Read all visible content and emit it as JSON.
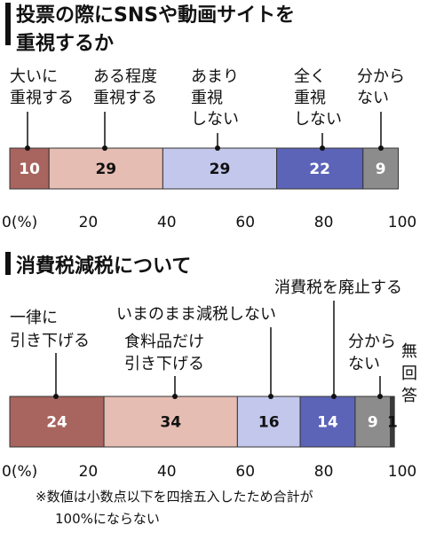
{
  "colors": {
    "c1": "#a8645e",
    "c2": "#e6bdb3",
    "c3": "#c3c7ec",
    "c4": "#5c64b8",
    "c5": "#8c8c8c",
    "c6": "#3a3a3a"
  },
  "footnote": [
    "※数値は小数点以下を四捨五入したため合計が",
    "100%にならない"
  ],
  "chart_data": [
    {
      "type": "bar",
      "orientation": "horizontal-stacked",
      "title": [
        "投票の際にSNSや動画サイトを",
        "重視するか"
      ],
      "xlim": [
        0,
        100
      ],
      "x_ticks": [
        "0(%)",
        "20",
        "40",
        "60",
        "80",
        "100"
      ],
      "series": [
        {
          "name": [
            "大いに",
            "重視する"
          ],
          "value": 10,
          "color": "c1"
        },
        {
          "name": [
            "ある程度",
            "重視する"
          ],
          "value": 29,
          "color": "c2"
        },
        {
          "name": [
            "あまり",
            "重視",
            "しない"
          ],
          "value": 29,
          "color": "c3"
        },
        {
          "name": [
            "全く",
            "重視",
            "しない"
          ],
          "value": 22,
          "color": "c4"
        },
        {
          "name": [
            "分から",
            "ない"
          ],
          "value": 9,
          "color": "c5"
        }
      ]
    },
    {
      "type": "bar",
      "orientation": "horizontal-stacked",
      "title": [
        "消費税減税について"
      ],
      "xlim": [
        0,
        100
      ],
      "x_ticks": [
        "0(%)",
        "20",
        "40",
        "60",
        "80",
        "100"
      ],
      "series": [
        {
          "name": [
            "一律に",
            "引き下げる"
          ],
          "value": 24,
          "color": "c1"
        },
        {
          "name": [
            "食料品だけ",
            "引き下げる"
          ],
          "value": 34,
          "color": "c2"
        },
        {
          "name": [
            "いまのまま減税しない"
          ],
          "value": 16,
          "color": "c3"
        },
        {
          "name": [
            "消費税を廃止する"
          ],
          "value": 14,
          "color": "c4"
        },
        {
          "name": [
            "分から",
            "ない"
          ],
          "value": 9,
          "color": "c5"
        },
        {
          "name": [
            "無",
            "回",
            "答"
          ],
          "value": 1,
          "color": "c6"
        }
      ]
    }
  ]
}
